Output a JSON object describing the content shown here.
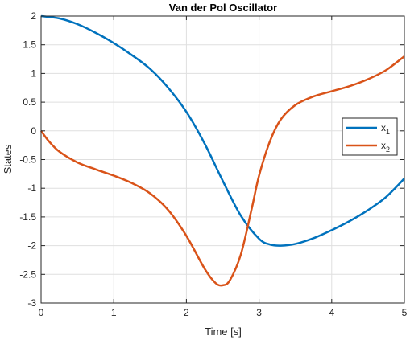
{
  "chart_data": {
    "type": "line",
    "title": "Van der Pol Oscillator",
    "xlabel": "Time [s]",
    "ylabel": "States",
    "xlim": [
      0,
      5
    ],
    "ylim": [
      -3,
      2
    ],
    "xticks": [
      0,
      1,
      2,
      3,
      4,
      5
    ],
    "yticks": [
      2,
      1.5,
      1,
      0.5,
      0,
      -0.5,
      -1,
      -1.5,
      -2,
      -2.5,
      -3
    ],
    "xtick_labels": [
      "0",
      "1",
      "2",
      "3",
      "4",
      "5"
    ],
    "ytick_labels": [
      "2",
      "1.5",
      "1",
      "0.5",
      "0",
      "-0.5",
      "-1",
      "-1.5",
      "-2",
      "-2.5",
      "-3"
    ],
    "grid": true,
    "legend_position": "right",
    "series": [
      {
        "name": "x",
        "subscript": "1",
        "color": "#0072BD",
        "x": [
          0,
          0.25,
          0.5,
          0.75,
          1.0,
          1.25,
          1.5,
          1.75,
          2.0,
          2.25,
          2.5,
          2.75,
          3.0,
          3.15,
          3.3,
          3.5,
          3.75,
          4.0,
          4.25,
          4.5,
          4.75,
          5.0
        ],
        "y": [
          2.0,
          1.96,
          1.86,
          1.71,
          1.53,
          1.32,
          1.08,
          0.75,
          0.33,
          -0.22,
          -0.87,
          -1.48,
          -1.88,
          -1.98,
          -2.0,
          -1.97,
          -1.87,
          -1.73,
          -1.57,
          -1.38,
          -1.15,
          -0.83
        ]
      },
      {
        "name": "x",
        "subscript": "2",
        "color": "#D95319",
        "x": [
          0,
          0.1,
          0.25,
          0.5,
          0.75,
          1.0,
          1.25,
          1.5,
          1.75,
          2.0,
          2.25,
          2.4,
          2.5,
          2.6,
          2.75,
          2.9,
          3.0,
          3.15,
          3.3,
          3.5,
          3.75,
          4.0,
          4.25,
          4.5,
          4.75,
          5.0
        ],
        "y": [
          0,
          -0.17,
          -0.36,
          -0.55,
          -0.67,
          -0.78,
          -0.91,
          -1.09,
          -1.38,
          -1.83,
          -2.4,
          -2.65,
          -2.69,
          -2.6,
          -2.15,
          -1.35,
          -0.78,
          -0.18,
          0.2,
          0.45,
          0.6,
          0.69,
          0.78,
          0.9,
          1.06,
          1.3
        ]
      }
    ]
  }
}
